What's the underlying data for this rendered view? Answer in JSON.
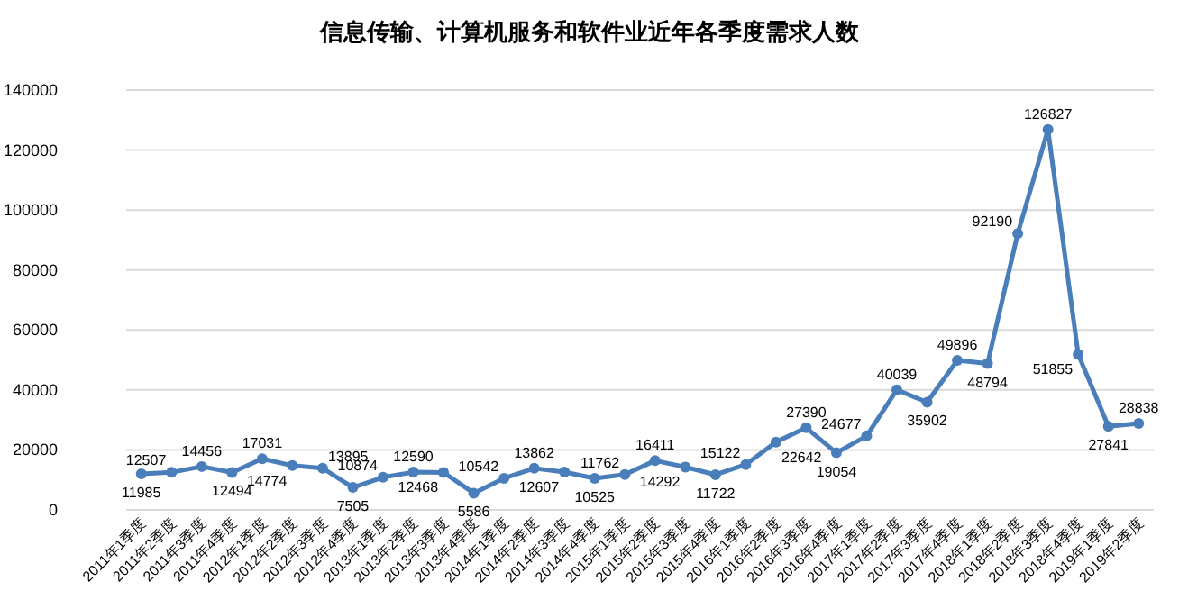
{
  "chart_data": {
    "type": "line",
    "title": "信息传输、计算机服务和软件业近年各季度需求人数",
    "categories": [
      "2011年1季度",
      "2011年2季度",
      "2011年3季度",
      "2011年4季度",
      "2012年1季度",
      "2012年2季度",
      "2012年3季度",
      "2012年4季度",
      "2013年1季度",
      "2013年2季度",
      "2013年3季度",
      "2013年4季度",
      "2014年1季度",
      "2014年2季度",
      "2014年3季度",
      "2014年4季度",
      "2015年1季度",
      "2015年2季度",
      "2015年3季度",
      "2015年4季度",
      "2016年1季度",
      "2016年2季度",
      "2016年3季度",
      "2016年4季度",
      "2017年1季度",
      "2017年2季度",
      "2017年3季度",
      "2017年4季度",
      "2018年1季度",
      "2018年2季度",
      "2018年3季度",
      "2018年4季度",
      "2019年1季度",
      "2019年2季度"
    ],
    "series": [
      {
        "color": "#4a7ebb",
        "values": [
          11985,
          12507,
          14456,
          12494,
          17031,
          14774,
          13895,
          7505,
          10874,
          12590,
          12468,
          5586,
          10542,
          13862,
          12607,
          10525,
          11762,
          16411,
          14292,
          11722,
          15122,
          22642,
          27390,
          19054,
          24677,
          40039,
          35902,
          49896,
          48794,
          92190,
          126827,
          51855,
          27841,
          28838
        ]
      }
    ],
    "ylim": [
      0,
      140000
    ],
    "yticks": [
      0,
      20000,
      40000,
      60000,
      80000,
      100000,
      120000,
      140000
    ],
    "grid": "y",
    "marker": "circle",
    "line_style": "solid",
    "data_labels": true
  }
}
